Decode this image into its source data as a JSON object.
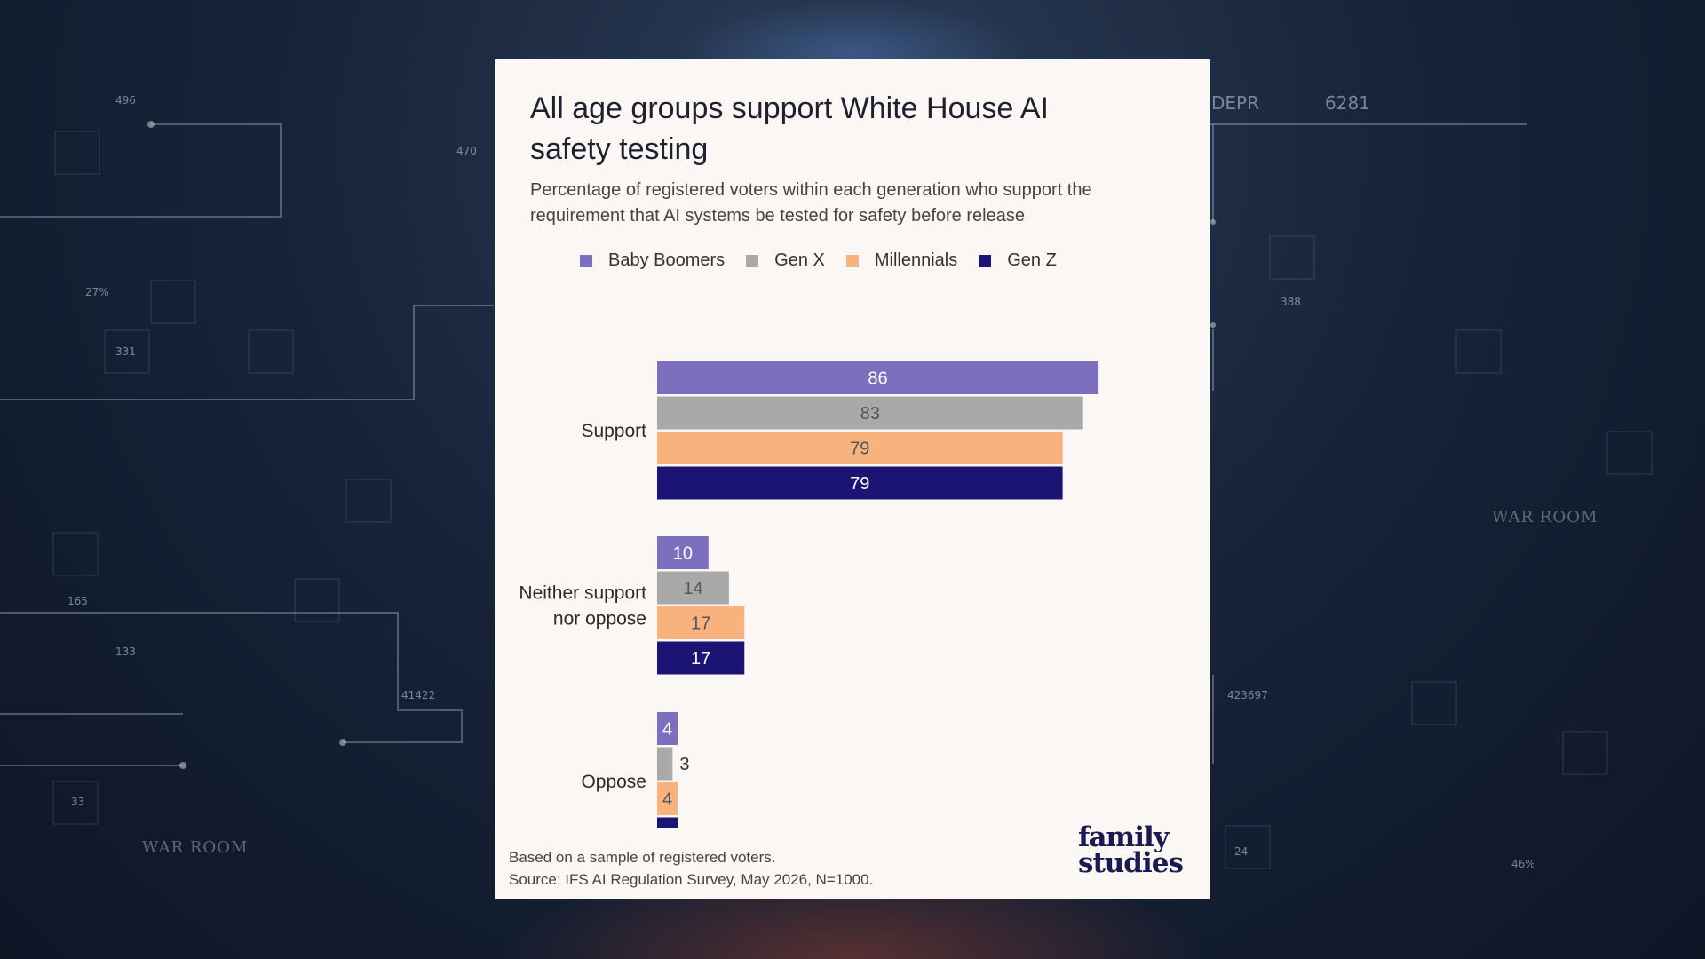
{
  "background": {
    "numbers": [
      "496",
      "470",
      "27%",
      "331",
      "165",
      "133",
      "41422",
      "33",
      "388",
      "423697",
      "24",
      "46%"
    ],
    "header_code": "DEPR",
    "header_number": "6281",
    "watermark": "WAR ROOM"
  },
  "legend": [
    {
      "name": "Baby Boomers",
      "color": "#7b6fbe"
    },
    {
      "name": "Gen X",
      "color": "#a9a9a9"
    },
    {
      "name": "Millennials",
      "color": "#f8b27d"
    },
    {
      "name": "Gen Z",
      "color": "#1c1475"
    }
  ],
  "chart_data": {
    "type": "bar",
    "orientation": "horizontal",
    "title": "All age groups support White House AI safety testing",
    "subtitle": "Percentage of registered voters within each generation who support the requirement that AI systems be tested for safety before release",
    "categories": [
      "Support",
      "Neither support nor oppose",
      "Oppose"
    ],
    "series": [
      {
        "name": "Baby Boomers",
        "color": "#7b6fbe",
        "values": [
          86,
          10,
          4
        ]
      },
      {
        "name": "Gen X",
        "color": "#a9a9a9",
        "values": [
          83,
          14,
          3
        ]
      },
      {
        "name": "Millennials",
        "color": "#f8b27d",
        "values": [
          79,
          17,
          4
        ]
      },
      {
        "name": "Gen Z",
        "color": "#1c1475",
        "values": [
          79,
          17,
          4
        ]
      }
    ],
    "xlim": [
      0,
      100
    ],
    "grid": false,
    "legend_position": "top",
    "footnote": "Based on a sample of registered voters.",
    "source": "Source: IFS AI Regulation Survey, May 2026, N=1000."
  },
  "brand": {
    "line1": "family",
    "line2": "studies"
  }
}
